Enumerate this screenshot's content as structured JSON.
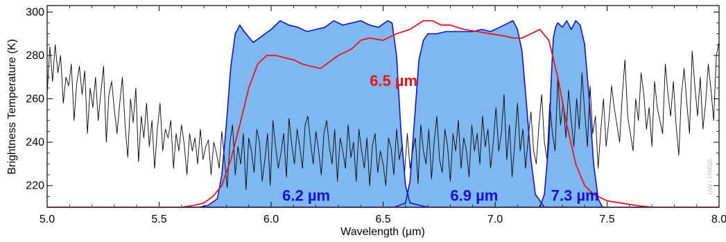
{
  "chart_data": {
    "type": "line",
    "title": "",
    "xlabel": "Wavelength (µm)",
    "ylabel": "Brightness Temperature (K)",
    "xlim": [
      5.0,
      8.0
    ],
    "ylim": [
      210,
      303
    ],
    "x_ticks": [
      "5.0",
      "5.5",
      "6.0",
      "6.5",
      "7.0",
      "7.5",
      "8.0"
    ],
    "y_ticks": [
      "220",
      "240",
      "260",
      "280",
      "300"
    ],
    "grid": false,
    "legend": "none",
    "colors": {
      "spectrum": "#000000",
      "band_fill": "#7fb8f0",
      "band_stroke": "#1010d0",
      "red_curve": "#ee1111",
      "blue_label": "#1010e0",
      "red_label": "#ee1111"
    },
    "band_labels": [
      {
        "text": "6.2 µm",
        "x": 6.05,
        "y": 213
      },
      {
        "text": "6.9 µm",
        "x": 6.8,
        "y": 213
      },
      {
        "text": "7.3 µm",
        "x": 7.25,
        "y": 213
      }
    ],
    "red_label": {
      "text": "6.5 µm",
      "x": 6.44,
      "y": 266
    },
    "credit": "UW / CIMSS",
    "series": [
      {
        "role": "band-6.2",
        "x": [
          5.0,
          5.68,
          5.72,
          5.76,
          5.78,
          5.8,
          5.82,
          5.84,
          5.86,
          5.88,
          5.92,
          5.96,
          6.0,
          6.04,
          6.08,
          6.12,
          6.16,
          6.2,
          6.24,
          6.28,
          6.32,
          6.36,
          6.4,
          6.44,
          6.48,
          6.52,
          6.54,
          6.56,
          6.58,
          6.6,
          6.62,
          6.7,
          8.0
        ],
        "y": [
          210,
          210,
          211,
          214,
          225,
          248,
          275,
          290,
          294,
          291,
          286,
          289,
          292,
          296,
          294,
          293,
          291,
          292,
          293,
          296,
          294,
          295,
          296,
          294,
          293,
          296,
          295,
          280,
          245,
          220,
          212,
          210,
          210
        ]
      },
      {
        "role": "band-6.9",
        "x": [
          5.0,
          6.55,
          6.6,
          6.62,
          6.64,
          6.66,
          6.68,
          6.7,
          6.74,
          6.78,
          6.82,
          6.86,
          6.9,
          6.94,
          6.98,
          7.02,
          7.06,
          7.08,
          7.1,
          7.12,
          7.14,
          7.16,
          7.18,
          7.22,
          8.0
        ],
        "y": [
          210,
          210,
          212,
          222,
          250,
          278,
          287,
          290,
          290,
          291,
          291,
          291,
          291,
          292,
          291,
          293,
          295,
          296,
          292,
          282,
          258,
          232,
          216,
          210,
          210
        ]
      },
      {
        "role": "band-7.3",
        "x": [
          5.0,
          7.2,
          7.22,
          7.24,
          7.25,
          7.26,
          7.27,
          7.28,
          7.3,
          7.32,
          7.34,
          7.36,
          7.38,
          7.4,
          7.42,
          7.44,
          7.46,
          7.48,
          8.0
        ],
        "y": [
          210,
          210,
          216,
          240,
          268,
          288,
          293,
          295,
          293,
          296,
          292,
          296,
          294,
          285,
          260,
          230,
          214,
          210,
          210
        ]
      },
      {
        "role": "red-6.5",
        "x": [
          5.0,
          5.6,
          5.66,
          5.7,
          5.74,
          5.78,
          5.82,
          5.86,
          5.9,
          5.94,
          5.98,
          6.02,
          6.06,
          6.1,
          6.14,
          6.18,
          6.22,
          6.26,
          6.3,
          6.36,
          6.4,
          6.44,
          6.5,
          6.56,
          6.62,
          6.68,
          6.72,
          6.76,
          6.8,
          6.86,
          6.92,
          6.98,
          7.04,
          7.08,
          7.12,
          7.16,
          7.2,
          7.24,
          7.28,
          7.32,
          7.36,
          7.4,
          7.44,
          7.5,
          7.56,
          7.62,
          7.7,
          7.78,
          8.0
        ],
        "y": [
          210,
          210,
          211,
          212,
          215,
          220,
          232,
          248,
          265,
          276,
          280,
          280,
          279,
          278,
          276,
          275,
          274,
          277,
          280,
          283,
          287,
          288,
          287,
          290,
          292,
          296,
          296,
          294,
          294,
          292,
          291,
          290,
          289,
          288,
          288,
          290,
          292,
          287,
          270,
          248,
          230,
          220,
          216,
          213,
          212,
          211,
          210,
          210,
          210
        ]
      },
      {
        "role": "spectrum",
        "x": [
          5.0,
          5.012,
          5.024,
          5.036,
          5.048,
          5.06,
          5.072,
          5.084,
          5.096,
          5.108,
          5.12,
          5.132,
          5.144,
          5.156,
          5.168,
          5.18,
          5.192,
          5.204,
          5.216,
          5.228,
          5.24,
          5.252,
          5.264,
          5.276,
          5.288,
          5.3,
          5.312,
          5.324,
          5.336,
          5.348,
          5.36,
          5.372,
          5.384,
          5.396,
          5.408,
          5.42,
          5.432,
          5.444,
          5.456,
          5.468,
          5.48,
          5.492,
          5.504,
          5.516,
          5.528,
          5.54,
          5.552,
          5.564,
          5.576,
          5.588,
          5.6,
          5.612,
          5.624,
          5.636,
          5.648,
          5.66,
          5.672,
          5.684,
          5.696,
          5.708,
          5.72,
          5.732,
          5.744,
          5.756,
          5.768,
          5.78,
          5.792,
          5.804,
          5.816,
          5.828,
          5.84,
          5.852,
          5.864,
          5.876,
          5.888,
          5.9,
          5.912,
          5.924,
          5.936,
          5.948,
          5.96,
          5.972,
          5.984,
          5.996,
          6.008,
          6.02,
          6.032,
          6.044,
          6.056,
          6.068,
          6.08,
          6.092,
          6.104,
          6.116,
          6.128,
          6.14,
          6.152,
          6.164,
          6.176,
          6.188,
          6.2,
          6.212,
          6.224,
          6.236,
          6.248,
          6.26,
          6.272,
          6.284,
          6.296,
          6.308,
          6.32,
          6.332,
          6.344,
          6.356,
          6.368,
          6.38,
          6.392,
          6.404,
          6.416,
          6.428,
          6.44,
          6.452,
          6.464,
          6.476,
          6.488,
          6.5,
          6.512,
          6.524,
          6.536,
          6.548,
          6.56,
          6.572,
          6.584,
          6.596,
          6.608,
          6.62,
          6.632,
          6.644,
          6.656,
          6.668,
          6.68,
          6.692,
          6.704,
          6.716,
          6.728,
          6.74,
          6.752,
          6.764,
          6.776,
          6.788,
          6.8,
          6.812,
          6.824,
          6.836,
          6.848,
          6.86,
          6.872,
          6.884,
          6.896,
          6.908,
          6.92,
          6.932,
          6.944,
          6.956,
          6.968,
          6.98,
          6.992,
          7.004,
          7.016,
          7.028,
          7.04,
          7.052,
          7.064,
          7.076,
          7.088,
          7.1,
          7.112,
          7.124,
          7.136,
          7.148,
          7.16,
          7.172,
          7.184,
          7.196,
          7.208,
          7.22,
          7.232,
          7.244,
          7.256,
          7.268,
          7.28,
          7.292,
          7.304,
          7.316,
          7.328,
          7.34,
          7.352,
          7.364,
          7.376,
          7.388,
          7.4,
          7.412,
          7.424,
          7.436,
          7.448,
          7.46,
          7.472,
          7.484,
          7.496,
          7.508,
          7.52,
          7.532,
          7.544,
          7.556,
          7.568,
          7.58,
          7.592,
          7.604,
          7.616,
          7.628,
          7.64,
          7.652,
          7.664,
          7.676,
          7.688,
          7.7,
          7.712,
          7.724,
          7.736,
          7.748,
          7.76,
          7.772,
          7.784,
          7.796,
          7.808,
          7.82,
          7.832,
          7.844,
          7.856,
          7.868,
          7.88,
          7.892,
          7.904,
          7.916,
          7.928,
          7.94,
          7.952,
          7.964,
          7.976,
          7.988,
          8.0
        ],
        "y": [
          262,
          284,
          268,
          285,
          272,
          280,
          258,
          270,
          266,
          276,
          250,
          267,
          275,
          262,
          273,
          244,
          265,
          256,
          270,
          250,
          263,
          275,
          240,
          262,
          268,
          255,
          244,
          258,
          270,
          248,
          233,
          260,
          249,
          265,
          231,
          252,
          242,
          258,
          238,
          250,
          228,
          246,
          258,
          236,
          246,
          242,
          250,
          228,
          244,
          236,
          248,
          239,
          225,
          244,
          236,
          242,
          230,
          246,
          232,
          238,
          241,
          225,
          240,
          235,
          228,
          245,
          232,
          219,
          240,
          248,
          225,
          238,
          230,
          244,
          218,
          242,
          236,
          226,
          246,
          240,
          222,
          232,
          244,
          220,
          250,
          238,
          228,
          235,
          244,
          224,
          251,
          239,
          230,
          246,
          238,
          228,
          248,
          252,
          240,
          230,
          245,
          236,
          225,
          244,
          250,
          238,
          230,
          246,
          222,
          242,
          236,
          228,
          248,
          233,
          240,
          222,
          246,
          236,
          228,
          242,
          220,
          238,
          244,
          226,
          236,
          230,
          220,
          242,
          237,
          225,
          246,
          232,
          238,
          226,
          244,
          228,
          236,
          242,
          221,
          248,
          236,
          230,
          246,
          223,
          240,
          252,
          232,
          226,
          246,
          238,
          222,
          244,
          236,
          250,
          228,
          242,
          236,
          224,
          248,
          236,
          244,
          230,
          252,
          238,
          246,
          228,
          240,
          256,
          236,
          244,
          262,
          232,
          248,
          224,
          240,
          258,
          236,
          246,
          228,
          242,
          254,
          236,
          230,
          248,
          262,
          240,
          232,
          258,
          244,
          236,
          270,
          248,
          258,
          242,
          264,
          250,
          238,
          260,
          246,
          272,
          254,
          238,
          266,
          244,
          252,
          228,
          246,
          260,
          238,
          250,
          266,
          256,
          248,
          240,
          262,
          278,
          252,
          244,
          236,
          260,
          250,
          272,
          262,
          246,
          256,
          238,
          268,
          256,
          250,
          244,
          276,
          262,
          252,
          268,
          248,
          234,
          262,
          274,
          258,
          244,
          282,
          266,
          252,
          270,
          246,
          258,
          276,
          264,
          250,
          280,
          286
        ]
      }
    ]
  }
}
